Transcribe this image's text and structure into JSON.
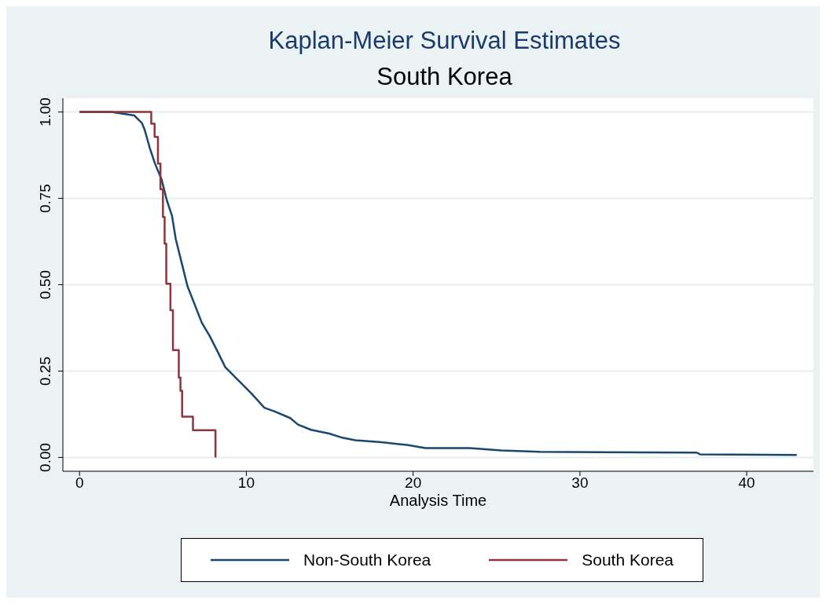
{
  "chart_data": {
    "type": "line",
    "title": "Kaplan-Meier Survival Estimates",
    "subtitle": "South Korea",
    "xlabel": "Analysis Time",
    "xlim": [
      -1,
      44
    ],
    "xticks": [
      0,
      10,
      20,
      30,
      40
    ],
    "ylim": [
      -0.04,
      1.04
    ],
    "yticks": [
      {
        "value": 0,
        "label": "0.00"
      },
      {
        "value": 0.25,
        "label": "0.25"
      },
      {
        "value": 0.5,
        "label": "0.50"
      },
      {
        "value": 0.75,
        "label": "0.75"
      },
      {
        "value": 1,
        "label": "1.00"
      }
    ],
    "grid": "y",
    "legend": "bottom",
    "series": [
      {
        "name": "Non-South Korea",
        "color": "#1a476f",
        "x": [
          0,
          1.9,
          3.28,
          3.74,
          3.9,
          4.21,
          4.52,
          4.91,
          5.23,
          5.54,
          5.77,
          6.16,
          6.47,
          7.02,
          7.33,
          7.8,
          8.27,
          8.74,
          9.05,
          9.36,
          9.67,
          10.29,
          11.08,
          11.7,
          12.63,
          13.1,
          13.88,
          14.97,
          15.76,
          16.53,
          18.1,
          19.65,
          20.74,
          23.4,
          25.3,
          27.6,
          37.0,
          37.2,
          43.0
        ],
        "values": [
          1,
          1,
          0.99,
          0.968,
          0.949,
          0.896,
          0.851,
          0.806,
          0.745,
          0.7,
          0.632,
          0.556,
          0.496,
          0.428,
          0.39,
          0.352,
          0.307,
          0.261,
          0.246,
          0.231,
          0.216,
          0.186,
          0.144,
          0.133,
          0.114,
          0.095,
          0.08,
          0.069,
          0.057,
          0.05,
          0.044,
          0.036,
          0.027,
          0.027,
          0.02,
          0.016,
          0.014,
          0.009,
          0.007
        ]
      },
      {
        "name": "South Korea",
        "type": "step",
        "color": "#90353b",
        "x": [
          0,
          4.3,
          4.5,
          4.7,
          4.85,
          5.0,
          5.1,
          5.2,
          5.45,
          5.6,
          5.95,
          6.05,
          6.15,
          6.8,
          8.15
        ],
        "values": [
          1,
          0.966,
          0.928,
          0.851,
          0.776,
          0.696,
          0.619,
          0.503,
          0.426,
          0.311,
          0.231,
          0.193,
          0.118,
          0.079,
          0
        ]
      }
    ]
  }
}
